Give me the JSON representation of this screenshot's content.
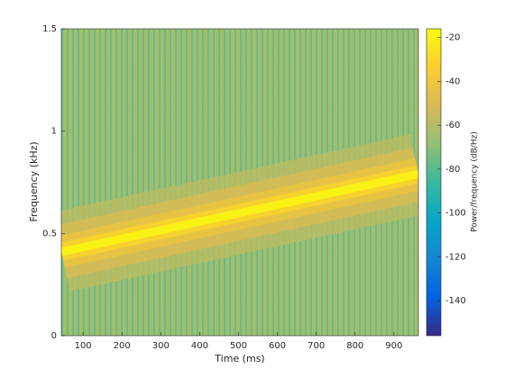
{
  "chart_data": {
    "type": "spectrogram",
    "xlabel": "Time (ms)",
    "ylabel": "Frequency (kHz)",
    "colorbar_label": "Power/frequency (dB/Hz)",
    "xlim": [
      44,
      963
    ],
    "xticks": [
      100,
      200,
      300,
      400,
      500,
      600,
      700,
      800,
      900
    ],
    "ylim": [
      0,
      1.5
    ],
    "yticks": [
      0,
      0.5,
      1,
      1.5
    ],
    "clim": [
      -156,
      -16
    ],
    "cticks": [
      -20,
      -40,
      -60,
      -80,
      -100,
      -120,
      -140
    ],
    "colormap": [
      "#352a87",
      "#0363e1",
      "#1485d4",
      "#06a7c6",
      "#38b99e",
      "#92bf73",
      "#d9ba56",
      "#fcce2e",
      "#f9fb0e"
    ],
    "background_level": -65,
    "ridge": {
      "x": [
        44,
        963
      ],
      "y": [
        0.41,
        0.79
      ],
      "level": -20
    }
  }
}
